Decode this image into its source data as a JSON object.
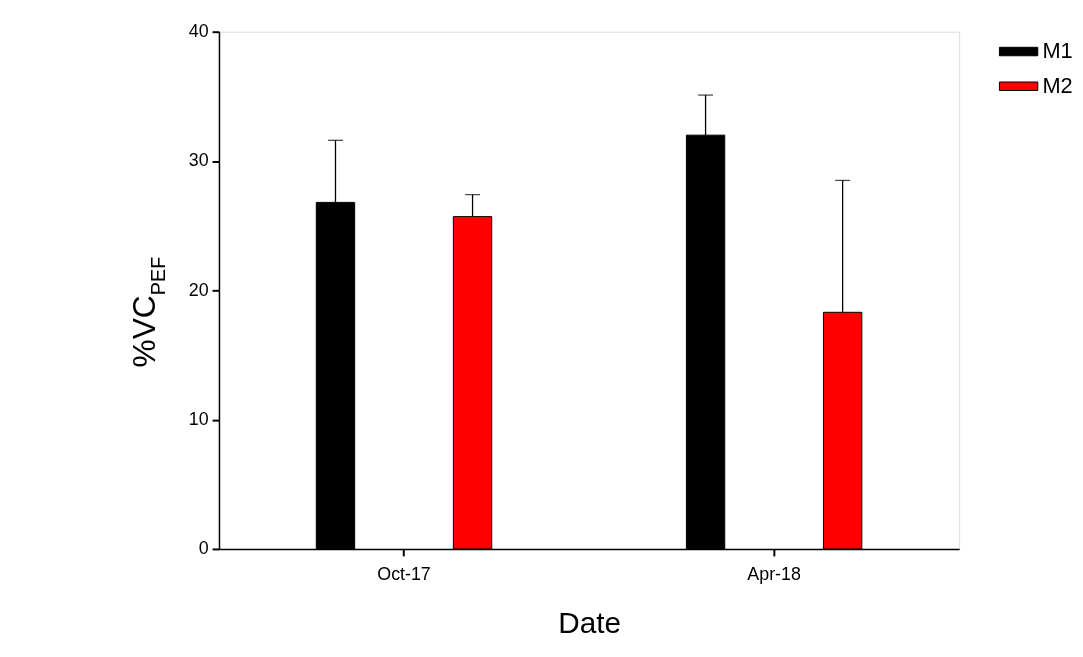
{
  "chart_data": {
    "type": "bar",
    "xlabel": "Date",
    "ylabel": "%VC$_{PEF}$",
    "categories": [
      "Oct-17",
      "Apr-18"
    ],
    "series": [
      {
        "name": "M1",
        "color": "#000000",
        "values": [
          26.8,
          32.0
        ],
        "errors": [
          [
            26.8,
            31.6
          ],
          [
            32.0,
            35.1
          ]
        ]
      },
      {
        "name": "M2",
        "color": "#ff0000",
        "values": [
          25.7,
          18.3
        ],
        "errors": [
          [
            25.7,
            27.4
          ],
          [
            18.3,
            28.5
          ]
        ]
      }
    ],
    "ylim": [
      0,
      40
    ],
    "yticks": [
      0,
      10,
      20,
      30,
      40
    ],
    "grid": false,
    "legend": "top right"
  }
}
